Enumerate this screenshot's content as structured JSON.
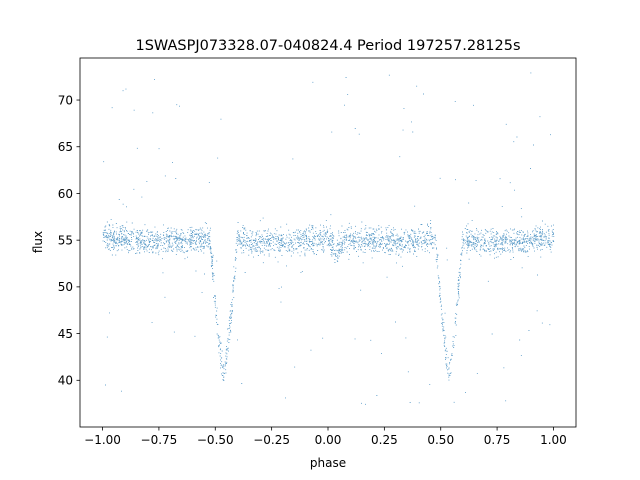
{
  "chart_data": {
    "type": "scatter",
    "title": "1SWASPJ073328.07-040824.4 Period 197257.28125s",
    "xlabel": "phase",
    "ylabel": "flux",
    "xlim": [
      -1.1,
      1.1
    ],
    "ylim": [
      35.0,
      74.5
    ],
    "xticks": [
      -1.0,
      -0.75,
      -0.5,
      -0.25,
      0.0,
      0.25,
      0.5,
      0.75,
      1.0
    ],
    "xtick_labels": [
      "−1.00",
      "−0.75",
      "−0.50",
      "−0.25",
      "0.00",
      "0.25",
      "0.50",
      "0.75",
      "1.00"
    ],
    "yticks": [
      40,
      45,
      50,
      55,
      60,
      65,
      70
    ],
    "ytick_labels": [
      "40",
      "45",
      "50",
      "55",
      "60",
      "65",
      "70"
    ],
    "grid": false,
    "legend": "none",
    "marker_color": "#1f77b4",
    "light_curve": {
      "baseline_flux": 55.0,
      "primary_eclipse": {
        "phases": [
          -0.465,
          0.535
        ],
        "min_flux": 40.5,
        "half_width": 0.06
      },
      "secondary_eclipse": {
        "phases": [
          0.035
        ],
        "min_flux": 53.6,
        "half_width": 0.05
      },
      "scatter_sigma": 0.7,
      "outlier_range": [
        37,
        73
      ]
    }
  }
}
